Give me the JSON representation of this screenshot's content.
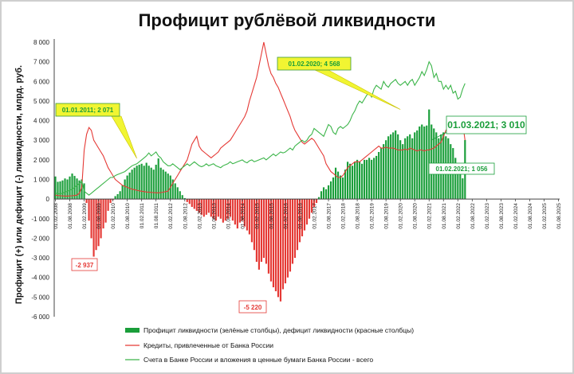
{
  "chart_data": {
    "type": "bar",
    "title": "Профицит рублёвой ликвидности",
    "ylabel": "Профицит (+) или дефицит (-) ликвидности, млрд. руб.",
    "ylim": [
      -6000,
      8000
    ],
    "yticks": [
      "8 000",
      "7 000",
      "6 000",
      "5 000",
      "4 000",
      "3 000",
      "2 000",
      "1 000",
      "0",
      "-1 000",
      "-2 000",
      "-3 000",
      "-4 000",
      "-5 000",
      "-6 000"
    ],
    "ytick_values": [
      8000,
      7000,
      6000,
      5000,
      4000,
      3000,
      2000,
      1000,
      0,
      -1000,
      -2000,
      -3000,
      -4000,
      -5000,
      -6000
    ],
    "xtick_labels": [
      "01.02.2008",
      "01.08.2008",
      "01.02.2009",
      "01.08.2009",
      "01.02.2010",
      "01.08.2010",
      "01.02.2011",
      "01.08.2011",
      "01.02.2012",
      "01.08.2012",
      "01.02.2013",
      "01.08.2013",
      "01.02.2014",
      "01.08.2014",
      "01.02.2015",
      "01.08.2015",
      "01.02.2016",
      "01.08.2016",
      "01.02.2017",
      "01.08.2017",
      "01.02.2018",
      "01.08.2018",
      "01.02.2019",
      "01.08.2019",
      "01.02.2020",
      "01.08.2020",
      "01.02.2021",
      "01.08.2021",
      "01.02.2022",
      "01.08.2022",
      "01.02.2023",
      "01.08.2023",
      "01.02.2024",
      "01.08.2024",
      "01.02.2025",
      "01.08.2025"
    ],
    "x_start": "2008-02",
    "x_end": "2025-08",
    "grid": false,
    "legend_position": "bottom",
    "series": [
      {
        "name": "Профицит ликвидности (зелёные столбцы), дефицит ликвидности (красные столбцы)",
        "kind": "bar",
        "color_positive": "#1a9e3a",
        "color_negative": "#e53935",
        "start": "2008-02",
        "values": [
          1150,
          880,
          900,
          950,
          1050,
          1000,
          1150,
          1300,
          1180,
          1050,
          950,
          1000,
          800,
          -200,
          -1100,
          -2000,
          -2937,
          -2600,
          -2400,
          -2000,
          -1500,
          -1200,
          -600,
          -200,
          -50,
          150,
          250,
          400,
          700,
          1000,
          1200,
          1350,
          1500,
          1600,
          1700,
          1750,
          1800,
          1700,
          1850,
          1700,
          1600,
          1500,
          1750,
          2071,
          1600,
          1500,
          1400,
          1300,
          1200,
          1000,
          800,
          600,
          400,
          200,
          50,
          -150,
          -250,
          -400,
          -500,
          -600,
          -700,
          -800,
          -900,
          -800,
          -700,
          -900,
          -1000,
          -1100,
          -900,
          -1000,
          -1200,
          -1100,
          -1000,
          -900,
          -1100,
          -1300,
          -1500,
          -1200,
          -1100,
          -1400,
          -1600,
          -1800,
          -2200,
          -2600,
          -3200,
          -3600,
          -3200,
          -3000,
          -3300,
          -3800,
          -4200,
          -4500,
          -4700,
          -5000,
          -5220,
          -4600,
          -4300,
          -4000,
          -3700,
          -3300,
          -3000,
          -2600,
          -2200,
          -1900,
          -1600,
          -1300,
          -1000,
          -700,
          -400,
          -200,
          100,
          400,
          600,
          500,
          700,
          900,
          1100,
          1600,
          1400,
          1200,
          1100,
          1500,
          1900,
          1800,
          1700,
          1900,
          2000,
          1900,
          1800,
          2000,
          2000,
          2100,
          2000,
          2100,
          2200,
          2400,
          2600,
          2800,
          3000,
          3200,
          3300,
          3400,
          3500,
          3300,
          3000,
          2800,
          3100,
          3200,
          3300,
          3100,
          3400,
          3500,
          3700,
          3800,
          3700,
          3750,
          4568,
          3800,
          3600,
          3400,
          3100,
          3300,
          3400,
          3200,
          3100,
          2800,
          2600,
          2100,
          1800,
          1500,
          1056,
          3010
        ]
      },
      {
        "name": "Кредиты, привлеченные от Банка России",
        "kind": "line",
        "color": "#e53935",
        "start": "2008-02",
        "values": [
          200,
          180,
          170,
          160,
          150,
          150,
          160,
          170,
          180,
          200,
          300,
          600,
          2500,
          3300,
          3650,
          3500,
          3000,
          2800,
          2600,
          2400,
          2200,
          1900,
          1600,
          1400,
          1200,
          1000,
          900,
          800,
          700,
          650,
          600,
          550,
          500,
          480,
          450,
          420,
          400,
          380,
          360,
          350,
          340,
          330,
          320,
          320,
          330,
          350,
          380,
          400,
          600,
          800,
          1000,
          1200,
          1400,
          1600,
          1800,
          2000,
          2400,
          2800,
          3000,
          3200,
          2700,
          2500,
          2400,
          2300,
          2200,
          2100,
          2200,
          2300,
          2400,
          2600,
          2700,
          2800,
          2900,
          3000,
          3200,
          3400,
          3600,
          3800,
          4000,
          4200,
          4500,
          5000,
          5400,
          5800,
          6200,
          6800,
          7400,
          8000,
          7400,
          6800,
          6400,
          6200,
          5900,
          5700,
          5400,
          5100,
          4800,
          4500,
          4200,
          3800,
          3500,
          3300,
          3100,
          2900,
          2800,
          2900,
          3000,
          3100,
          3000,
          2800,
          2600,
          2400,
          2200,
          1800,
          1600,
          1400,
          1300,
          1200,
          1100,
          1100,
          1200,
          1400,
          1600,
          1700,
          1800,
          1900,
          1900,
          1900,
          2000,
          2100,
          2200,
          2300,
          2400,
          2500,
          2600,
          2700,
          2600,
          2600,
          2650,
          2600,
          2600,
          2600,
          2550,
          2500,
          2500,
          2500,
          2550,
          2500,
          2600,
          2550,
          2500,
          2450,
          2500,
          2500,
          2450,
          2500,
          2500,
          2550,
          2600,
          2700,
          2800,
          2900,
          3200,
          3500,
          3700,
          3600,
          3400,
          3500,
          3800,
          4000,
          3900,
          3000
        ]
      },
      {
        "name": "Счета в Банке России и вложения в ценные бумаги Банка России - всего",
        "kind": "line",
        "color": "#3cb54a",
        "start": "2008-02",
        "values": [
          300,
          280,
          260,
          300,
          350,
          400,
          450,
          500,
          600,
          700,
          800,
          900,
          400,
          300,
          200,
          300,
          400,
          500,
          600,
          700,
          800,
          900,
          1000,
          1100,
          1100,
          1200,
          1250,
          1300,
          1350,
          1400,
          1500,
          1600,
          1700,
          1750,
          1800,
          1900,
          2000,
          2100,
          2200,
          2350,
          2200,
          2300,
          2400,
          2200,
          2100,
          1900,
          1800,
          1700,
          1700,
          1800,
          1700,
          1600,
          1500,
          1600,
          1700,
          1800,
          1700,
          1800,
          1900,
          1800,
          1700,
          1650,
          1700,
          1800,
          1700,
          1750,
          1800,
          1700,
          1650,
          1600,
          1700,
          1750,
          1800,
          1900,
          1800,
          1850,
          1900,
          1950,
          2000,
          1900,
          1850,
          1950,
          2000,
          1900,
          1950,
          2000,
          2050,
          2100,
          2000,
          2100,
          2200,
          2300,
          2200,
          2300,
          2400,
          2350,
          2400,
          2500,
          2600,
          2500,
          2700,
          2800,
          2900,
          3000,
          2900,
          3000,
          3200,
          3300,
          3600,
          3500,
          3400,
          3300,
          3200,
          3500,
          3800,
          3700,
          3400,
          3300,
          3600,
          3700,
          3600,
          3700,
          3800,
          4000,
          4300,
          4500,
          4800,
          5000,
          4900,
          5100,
          5300,
          5400,
          5200,
          5600,
          5800,
          5700,
          5600,
          6000,
          5800,
          5700,
          5900,
          6000,
          6100,
          5900,
          5800,
          5900,
          6000,
          5800,
          6000,
          6100,
          5800,
          6000,
          6200,
          6500,
          6300,
          6600,
          7000,
          6800,
          6200,
          6400,
          6000,
          6000,
          5600,
          5800,
          5600,
          5800,
          5400,
          5500,
          5100,
          5200,
          5600,
          5900
        ]
      }
    ],
    "annotations": [
      {
        "text": "01.01.2011; 2 071",
        "color": "#1a9e3a",
        "bg": "#f1f532",
        "kind": "callout"
      },
      {
        "text": "01.02.2020; 4 568",
        "color": "#1a9e3a",
        "bg": "#f1f532",
        "kind": "callout"
      },
      {
        "text": "01.03.2021; 3 010",
        "color": "#1a9e3a",
        "kind": "big"
      },
      {
        "text": "01.02.2021; 1 056",
        "color": "#1a9e3a",
        "kind": "small"
      },
      {
        "text": "-2 937",
        "color": "#e53935",
        "kind": "neg"
      },
      {
        "text": "-5 220",
        "color": "#e53935",
        "kind": "neg"
      }
    ],
    "legend": [
      "Профицит ликвидности (зелёные столбцы), дефицит ликвидности (красные столбцы)",
      "Кредиты, привлеченные от Банка России",
      "Счета в Банке России и вложения в ценные бумаги Банка России - всего"
    ]
  }
}
